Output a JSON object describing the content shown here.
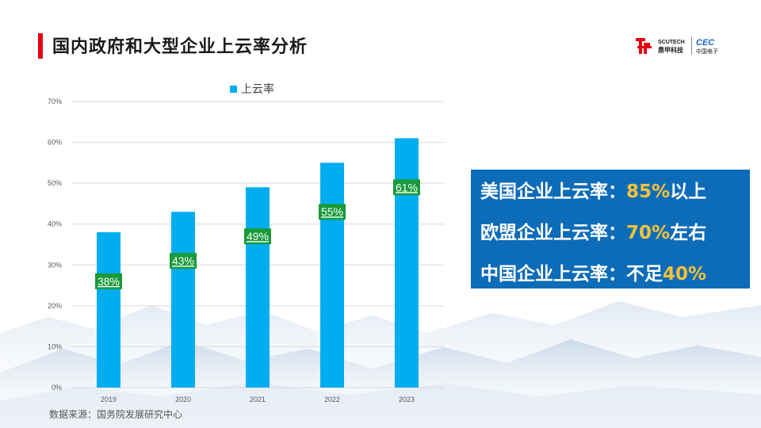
{
  "slide": {
    "title": "国内政府和大型企业上云率分析",
    "source": "数据来源：国务院发展研究中心"
  },
  "logo": {
    "company": "SCUTECH",
    "company_cn": "鼎甲科技",
    "partner": "CEC",
    "partner_cn": "中国电子"
  },
  "colors": {
    "accent": "#e60012",
    "bar": "#00adef",
    "label_bg": "#1a9a3a",
    "box_bg": "#0d6cb8",
    "highlight": "#f7c33a"
  },
  "chart_data": {
    "type": "bar",
    "categories": [
      "2019",
      "2020",
      "2021",
      "2022",
      "2023"
    ],
    "series": [
      {
        "name": "上云率",
        "values": [
          38,
          43,
          49,
          55,
          61
        ]
      }
    ],
    "data_labels": [
      "38%",
      "43%",
      "49%",
      "55%",
      "61%"
    ],
    "y_ticks": [
      "0%",
      "10%",
      "20%",
      "30%",
      "40%",
      "50%",
      "60%",
      "70%"
    ],
    "ylim": [
      0,
      70
    ],
    "grid": true,
    "legend": "top"
  },
  "stats": [
    {
      "prefix": "美国企业上云率：",
      "value": "85%",
      "suffix": "以上"
    },
    {
      "prefix": "欧盟企业上云率：",
      "value": "70%",
      "suffix": "左右"
    },
    {
      "prefix": "中国企业上云率：不足",
      "value": "40%",
      "suffix": ""
    }
  ]
}
